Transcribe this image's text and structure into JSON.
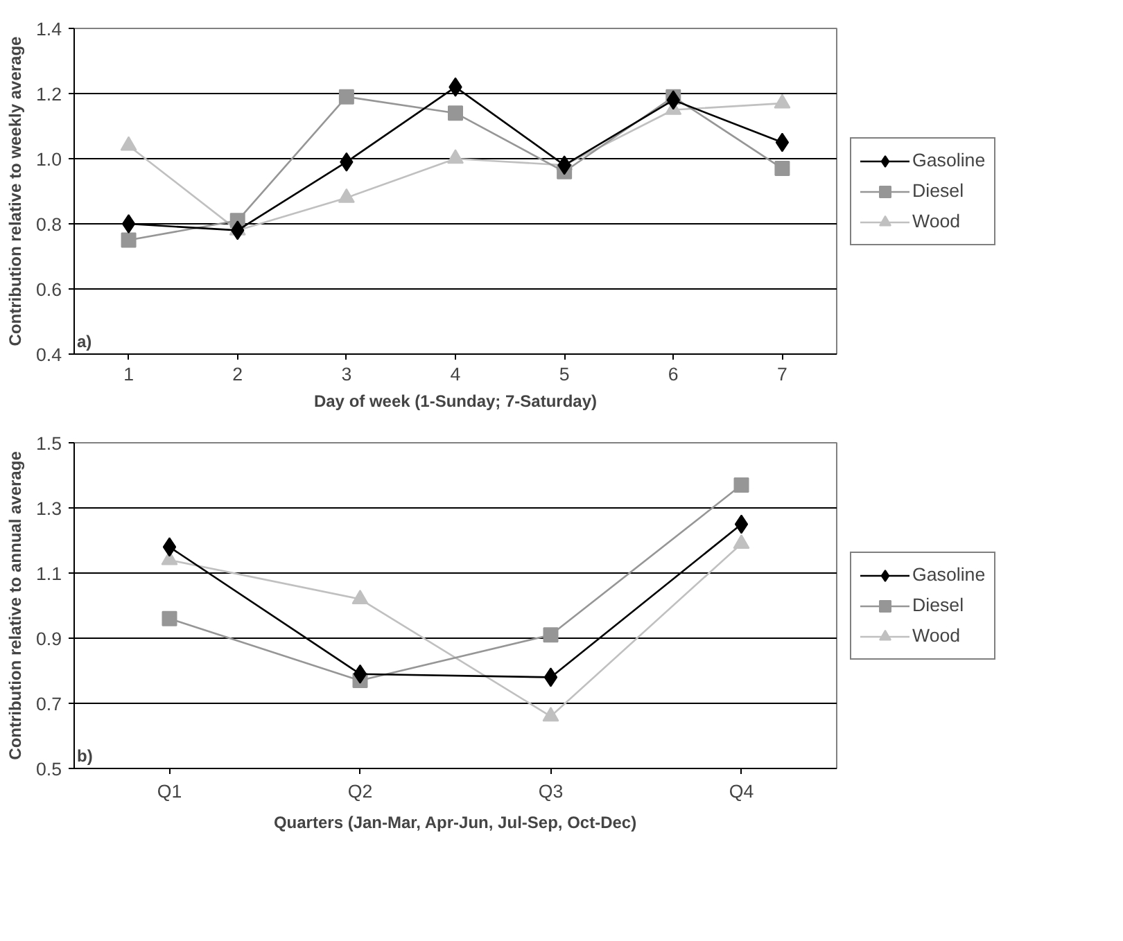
{
  "chart_data": [
    {
      "type": "line",
      "annotations": [
        "a)"
      ],
      "xlabel": "Day of week (1-Sunday; 7-Saturday)",
      "ylabel": "Contribution relative to weekly average",
      "categories": [
        "1",
        "2",
        "3",
        "4",
        "5",
        "6",
        "7"
      ],
      "series": [
        {
          "name": "Gasoline",
          "color": "#000000",
          "marker": "diamond",
          "values": [
            0.8,
            0.78,
            0.99,
            1.22,
            0.98,
            1.18,
            1.05
          ]
        },
        {
          "name": "Diesel",
          "color": "#969696",
          "marker": "square",
          "values": [
            0.75,
            0.81,
            1.19,
            1.14,
            0.96,
            1.19,
            0.97
          ]
        },
        {
          "name": "Wood",
          "color": "#c0c0c0",
          "marker": "triangle",
          "values": [
            1.04,
            0.78,
            0.88,
            1.0,
            0.98,
            1.15,
            1.17
          ]
        }
      ],
      "ylim": [
        0.4,
        1.4
      ],
      "yticks": [
        0.4,
        0.6,
        0.8,
        {
          "value": 1.0,
          "label": "1.0"
        },
        1.2,
        1.4
      ],
      "grid": "y",
      "legend": "right"
    },
    {
      "type": "line",
      "annotations": [
        "b)"
      ],
      "xlabel": "Quarters (Jan-Mar, Apr-Jun, Jul-Sep, Oct-Dec)",
      "ylabel": "Contribution relative to annual average",
      "categories": [
        "Q1",
        "Q2",
        "Q3",
        "Q4"
      ],
      "series": [
        {
          "name": "Gasoline",
          "color": "#000000",
          "marker": "diamond",
          "values": [
            1.18,
            0.79,
            0.78,
            1.25
          ]
        },
        {
          "name": "Diesel",
          "color": "#969696",
          "marker": "square",
          "values": [
            0.96,
            0.77,
            0.91,
            1.37
          ]
        },
        {
          "name": "Wood",
          "color": "#c0c0c0",
          "marker": "triangle",
          "values": [
            1.14,
            1.02,
            0.66,
            1.19
          ]
        }
      ],
      "ylim": [
        0.5,
        1.5
      ],
      "yticks": [
        0.5,
        0.7,
        0.9,
        1.1,
        1.3,
        1.5
      ],
      "grid": "y",
      "legend": "right"
    }
  ]
}
